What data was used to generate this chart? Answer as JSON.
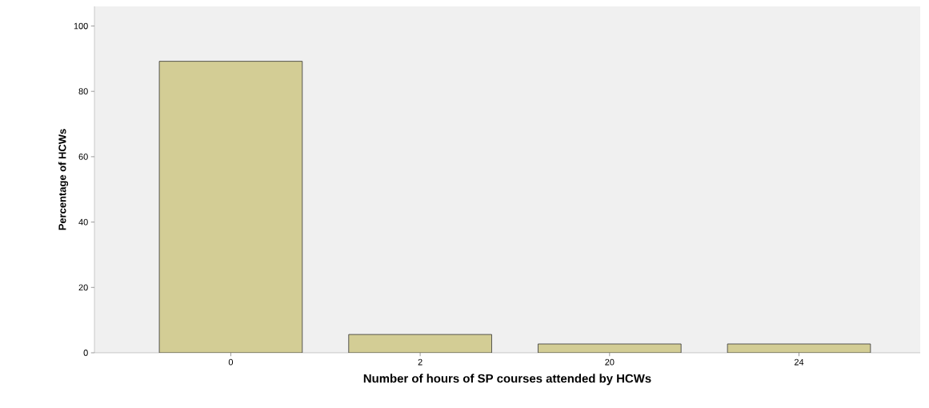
{
  "chart_data": {
    "type": "bar",
    "xlabel": "Number of hours of SP courses attended by HCWs",
    "ylabel": "Percentage of HCWs",
    "categories": [
      "0",
      "2",
      "20",
      "24"
    ],
    "values": [
      89.2,
      5.6,
      2.7,
      2.7
    ],
    "color": "#d3cd95",
    "ylim": [
      0,
      106
    ],
    "yticks": [
      0,
      20,
      40,
      60,
      80,
      100
    ],
    "grid": false
  }
}
